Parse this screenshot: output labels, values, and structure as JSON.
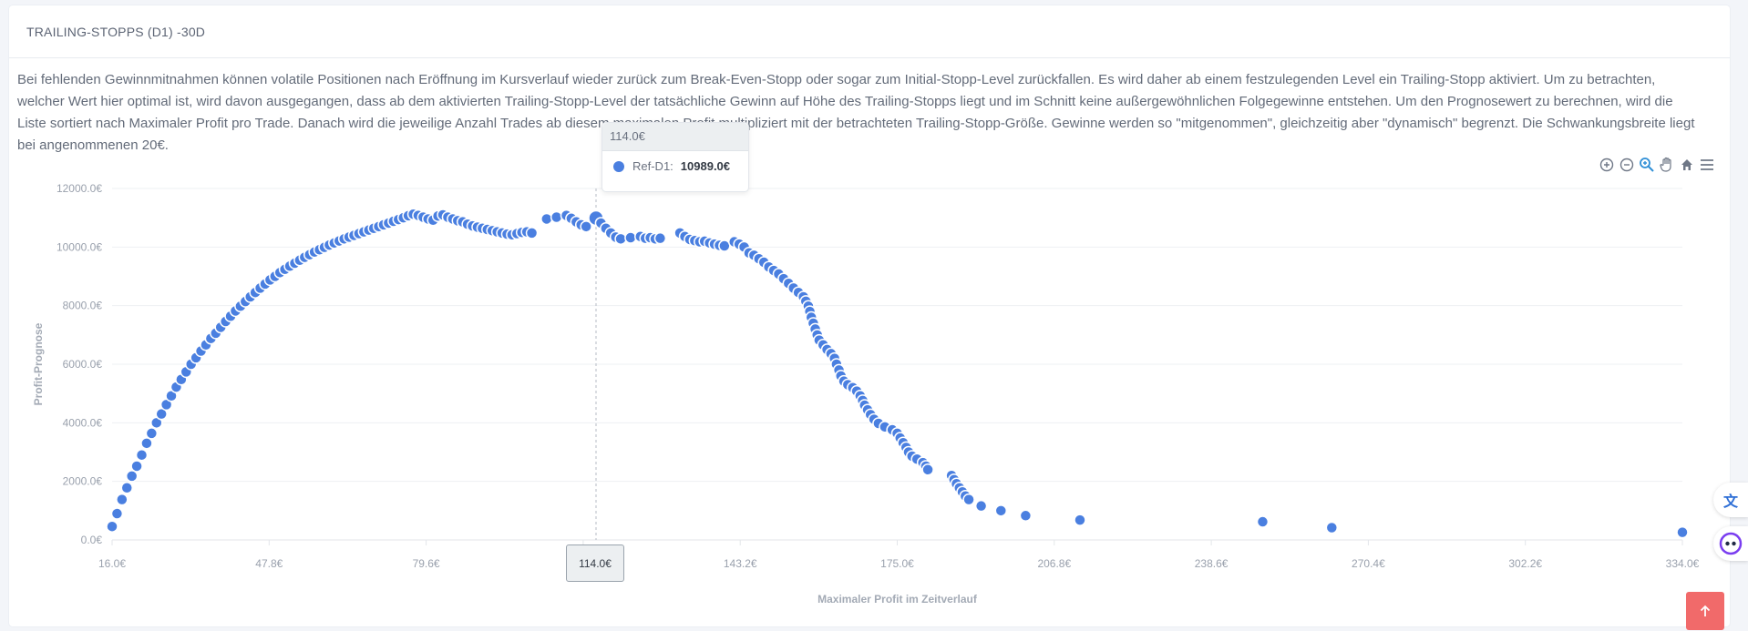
{
  "card": {
    "title": "TRAILING-STOPPS (D1) -30D",
    "description": "Bei fehlenden Gewinnmitnahmen können volatile Positionen nach Eröffnung im Kursverlauf wieder zurück zum Break-Even-Stopp oder sogar zum Initial-Stopp-Level zurückfallen. Es wird daher ab einem festzulegenden Level ein Trailing-Stopp aktiviert. Um zu betrachten, welcher Wert hier optimal ist, wird davon ausgegangen, dass ab dem aktivierten Trailing-Stopp-Level der tatsächliche Gewinn auf Höhe des Trailing-Stopps liegt und im Schnitt keine außergewöhnlichen Folgegewinne entstehen. Um den Prognosewert zu berechnen, wird die Liste sortiert nach Maximaler Profit pro Trade. Danach wird die jeweilige Anzahl Trades ab diesem maximalen Profit multipliziert mit der betrachteten Trailing-Stopp-Größe. Gewinne werden so \"mitgenommen\", gleichzeitig aber \"dynamisch\" begrenzt. Die Schwankungsbreite liegt bei angenommenen 20€."
  },
  "toolbar": {
    "icons": [
      "zoom-in-icon",
      "zoom-out-icon",
      "selection-zoom-icon",
      "pan-hand-icon",
      "home-reset-icon",
      "menu-icon"
    ]
  },
  "tooltip": {
    "title": "114.0€",
    "series_label": "Ref-D1:",
    "value": "10989.0€"
  },
  "crosshair_label": "114.0€",
  "colors": {
    "series": "#4a7fe0",
    "accent_active_tool": "#2f8fd6",
    "scroll_top": "#f16a6a"
  },
  "chart_data": {
    "type": "scatter",
    "xlabel": "Maximaler Profit im Zeitverlauf",
    "ylabel": "Profit-Prognose",
    "xlim": [
      16.0,
      334.0
    ],
    "ylim": [
      0,
      12000
    ],
    "x_ticks": [
      "16.0€",
      "47.8€",
      "79.6€",
      "111.4€",
      "143.2€",
      "175.0€",
      "206.8€",
      "238.6€",
      "270.4€",
      "302.2€",
      "334.0€"
    ],
    "y_ticks": [
      "0.0€",
      "2000.0€",
      "4000.0€",
      "6000.0€",
      "8000.0€",
      "10000.0€",
      "12000.0€"
    ],
    "grid": true,
    "series": [
      {
        "name": "Ref-D1",
        "points": [
          [
            16,
            460
          ],
          [
            17,
            900
          ],
          [
            18,
            1380
          ],
          [
            19,
            1780
          ],
          [
            20,
            2180
          ],
          [
            21,
            2520
          ],
          [
            22,
            2900
          ],
          [
            23,
            3300
          ],
          [
            24,
            3640
          ],
          [
            25,
            4000
          ],
          [
            26,
            4300
          ],
          [
            27,
            4620
          ],
          [
            28,
            4920
          ],
          [
            29,
            5220
          ],
          [
            30,
            5480
          ],
          [
            31,
            5740
          ],
          [
            32,
            6000
          ],
          [
            33,
            6220
          ],
          [
            34,
            6450
          ],
          [
            35,
            6660
          ],
          [
            36,
            6880
          ],
          [
            37,
            7060
          ],
          [
            38,
            7260
          ],
          [
            39,
            7460
          ],
          [
            40,
            7640
          ],
          [
            41,
            7820
          ],
          [
            42,
            7980
          ],
          [
            43,
            8140
          ],
          [
            44,
            8300
          ],
          [
            45,
            8450
          ],
          [
            46,
            8600
          ],
          [
            47,
            8740
          ],
          [
            48,
            8880
          ],
          [
            49,
            9000
          ],
          [
            50,
            9130
          ],
          [
            51,
            9240
          ],
          [
            52,
            9350
          ],
          [
            53,
            9450
          ],
          [
            54,
            9550
          ],
          [
            55,
            9650
          ],
          [
            56,
            9740
          ],
          [
            57,
            9830
          ],
          [
            58,
            9910
          ],
          [
            59,
            9990
          ],
          [
            60,
            10070
          ],
          [
            61,
            10140
          ],
          [
            62,
            10210
          ],
          [
            63,
            10280
          ],
          [
            64,
            10340
          ],
          [
            65,
            10400
          ],
          [
            66,
            10460
          ],
          [
            67,
            10520
          ],
          [
            68,
            10580
          ],
          [
            69,
            10640
          ],
          [
            70,
            10700
          ],
          [
            71,
            10760
          ],
          [
            72,
            10820
          ],
          [
            73,
            10880
          ],
          [
            74,
            10940
          ],
          [
            75,
            11000
          ],
          [
            76,
            11070
          ],
          [
            77,
            11120
          ],
          [
            78,
            11080
          ],
          [
            79,
            11020
          ],
          [
            80,
            10960
          ],
          [
            81,
            10920
          ],
          [
            82,
            11060
          ],
          [
            83,
            11100
          ],
          [
            84,
            11020
          ],
          [
            85,
            10960
          ],
          [
            86,
            10900
          ],
          [
            87,
            10860
          ],
          [
            88,
            10780
          ],
          [
            89,
            10720
          ],
          [
            90,
            10680
          ],
          [
            91,
            10640
          ],
          [
            92,
            10600
          ],
          [
            93,
            10560
          ],
          [
            94,
            10520
          ],
          [
            95,
            10480
          ],
          [
            96,
            10440
          ],
          [
            97,
            10420
          ],
          [
            98,
            10460
          ],
          [
            99,
            10500
          ],
          [
            100,
            10520
          ],
          [
            101,
            10480
          ],
          [
            104,
            10960
          ],
          [
            106,
            11020
          ],
          [
            108,
            11080
          ],
          [
            109,
            10980
          ],
          [
            110,
            10860
          ],
          [
            111,
            10760
          ],
          [
            112,
            10700
          ],
          [
            114,
            10989
          ],
          [
            115,
            10820
          ],
          [
            116,
            10640
          ],
          [
            117,
            10480
          ],
          [
            118,
            10340
          ],
          [
            119,
            10280
          ],
          [
            121,
            10320
          ],
          [
            123,
            10360
          ],
          [
            124,
            10300
          ],
          [
            125,
            10320
          ],
          [
            126,
            10280
          ],
          [
            127,
            10300
          ],
          [
            131,
            10480
          ],
          [
            132,
            10360
          ],
          [
            133,
            10260
          ],
          [
            134,
            10220
          ],
          [
            135,
            10180
          ],
          [
            136,
            10200
          ],
          [
            137,
            10140
          ],
          [
            138,
            10100
          ],
          [
            139,
            10060
          ],
          [
            140,
            10040
          ],
          [
            142,
            10180
          ],
          [
            143,
            10100
          ],
          [
            144,
            10000
          ],
          [
            145,
            9800
          ],
          [
            146,
            9720
          ],
          [
            147,
            9600
          ],
          [
            148,
            9480
          ],
          [
            149,
            9320
          ],
          [
            150,
            9200
          ],
          [
            151,
            9080
          ],
          [
            152,
            8920
          ],
          [
            153,
            8760
          ],
          [
            154,
            8600
          ],
          [
            155,
            8450
          ],
          [
            156,
            8300
          ],
          [
            156.5,
            8150
          ],
          [
            157,
            7980
          ],
          [
            157.3,
            7800
          ],
          [
            157.6,
            7600
          ],
          [
            158,
            7400
          ],
          [
            158.4,
            7200
          ],
          [
            158.8,
            7000
          ],
          [
            159.2,
            6820
          ],
          [
            160,
            6660
          ],
          [
            160.8,
            6500
          ],
          [
            161.6,
            6360
          ],
          [
            162.3,
            6200
          ],
          [
            162.7,
            6000
          ],
          [
            163.2,
            5800
          ],
          [
            163.6,
            5600
          ],
          [
            164.2,
            5420
          ],
          [
            165,
            5300
          ],
          [
            166,
            5200
          ],
          [
            166.8,
            5080
          ],
          [
            167.5,
            4920
          ],
          [
            168,
            4760
          ],
          [
            168.4,
            4600
          ],
          [
            169,
            4440
          ],
          [
            169.6,
            4280
          ],
          [
            170.3,
            4120
          ],
          [
            171.2,
            3980
          ],
          [
            172.5,
            3860
          ],
          [
            174,
            3760
          ],
          [
            175,
            3640
          ],
          [
            175.6,
            3480
          ],
          [
            176.2,
            3320
          ],
          [
            176.8,
            3160
          ],
          [
            177.3,
            3000
          ],
          [
            178,
            2860
          ],
          [
            179,
            2760
          ],
          [
            180.2,
            2640
          ],
          [
            180.8,
            2520
          ],
          [
            181.2,
            2400
          ],
          [
            186,
            2200
          ],
          [
            186.5,
            2060
          ],
          [
            187,
            1920
          ],
          [
            187.6,
            1780
          ],
          [
            188.2,
            1640
          ],
          [
            188.8,
            1500
          ],
          [
            189.5,
            1380
          ],
          [
            192,
            1160
          ],
          [
            196,
            1000
          ],
          [
            201,
            830
          ],
          [
            212,
            680
          ],
          [
            249,
            620
          ],
          [
            263,
            420
          ],
          [
            334,
            260
          ]
        ]
      }
    ]
  }
}
